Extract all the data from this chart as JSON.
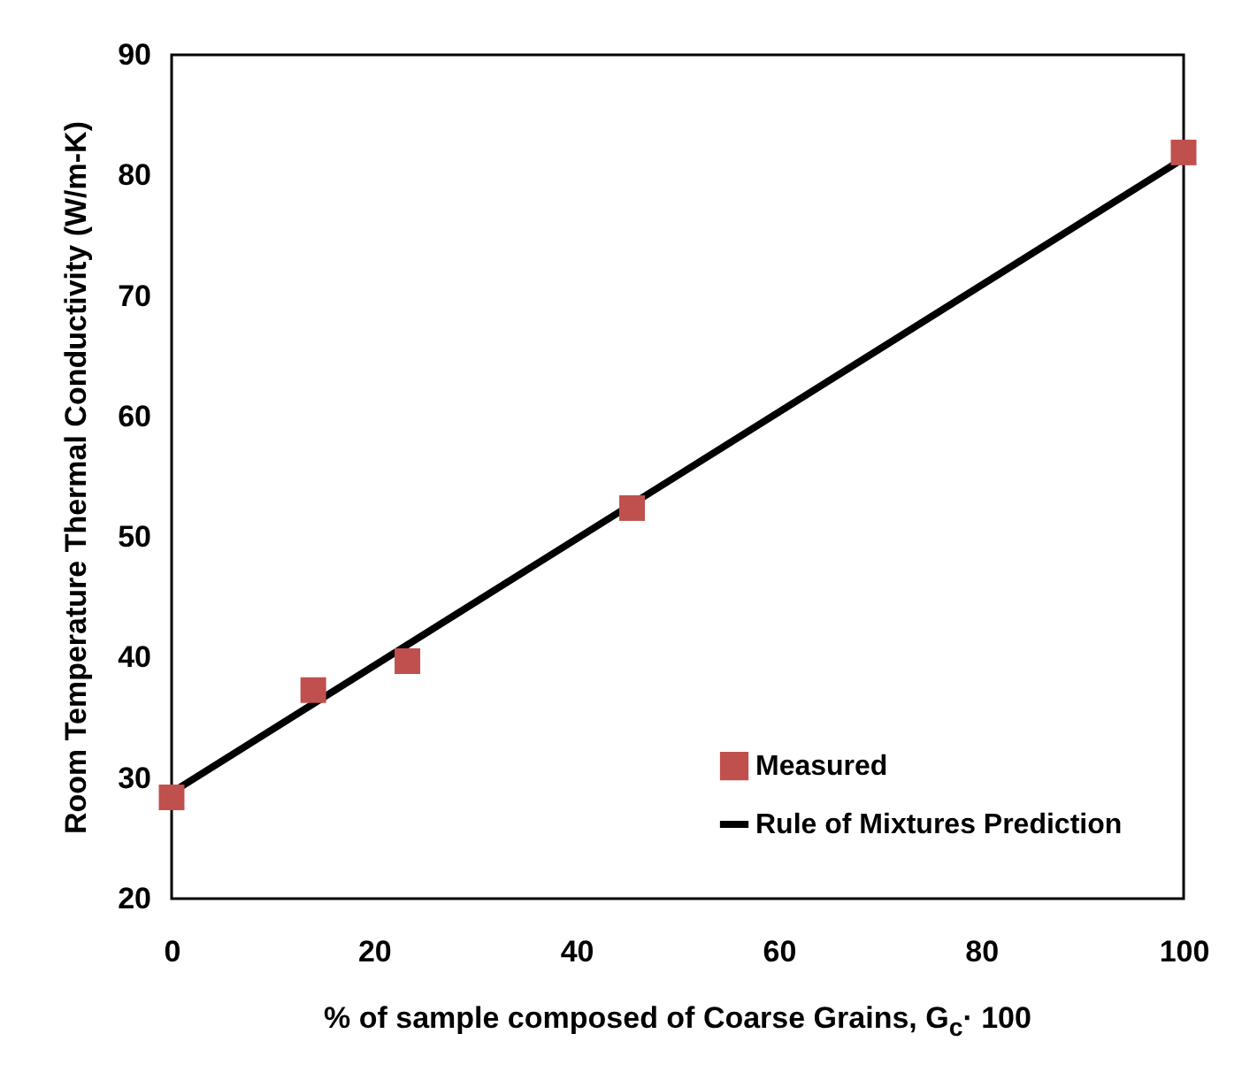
{
  "chart_data": {
    "type": "scatter",
    "xlabel": "% of sample composed of Coarse Grains, G$_{c}$· 100",
    "ylabel": "Room Temperature Thermal Conductivity (W/m-K)",
    "xlim": [
      0,
      100
    ],
    "xticks": [
      0,
      20,
      40,
      60,
      80,
      100
    ],
    "ylim": [
      20,
      90
    ],
    "yticks": [
      20,
      30,
      40,
      50,
      60,
      70,
      80,
      90
    ],
    "grid": false,
    "legend": "bottom right",
    "series": [
      {
        "name": "Measured",
        "marker": "square",
        "color": "#c0504d",
        "x": [
          0,
          14,
          23.3,
          45.5,
          100
        ],
        "values": [
          28.4,
          37.3,
          39.7,
          52.4,
          81.9
        ]
      },
      {
        "name": "Rule of Mixtures Prediction",
        "type": "line",
        "line_style": "solid",
        "color": "#000000",
        "x": [
          0,
          100
        ],
        "values": [
          28.8,
          81.4
        ]
      }
    ]
  }
}
